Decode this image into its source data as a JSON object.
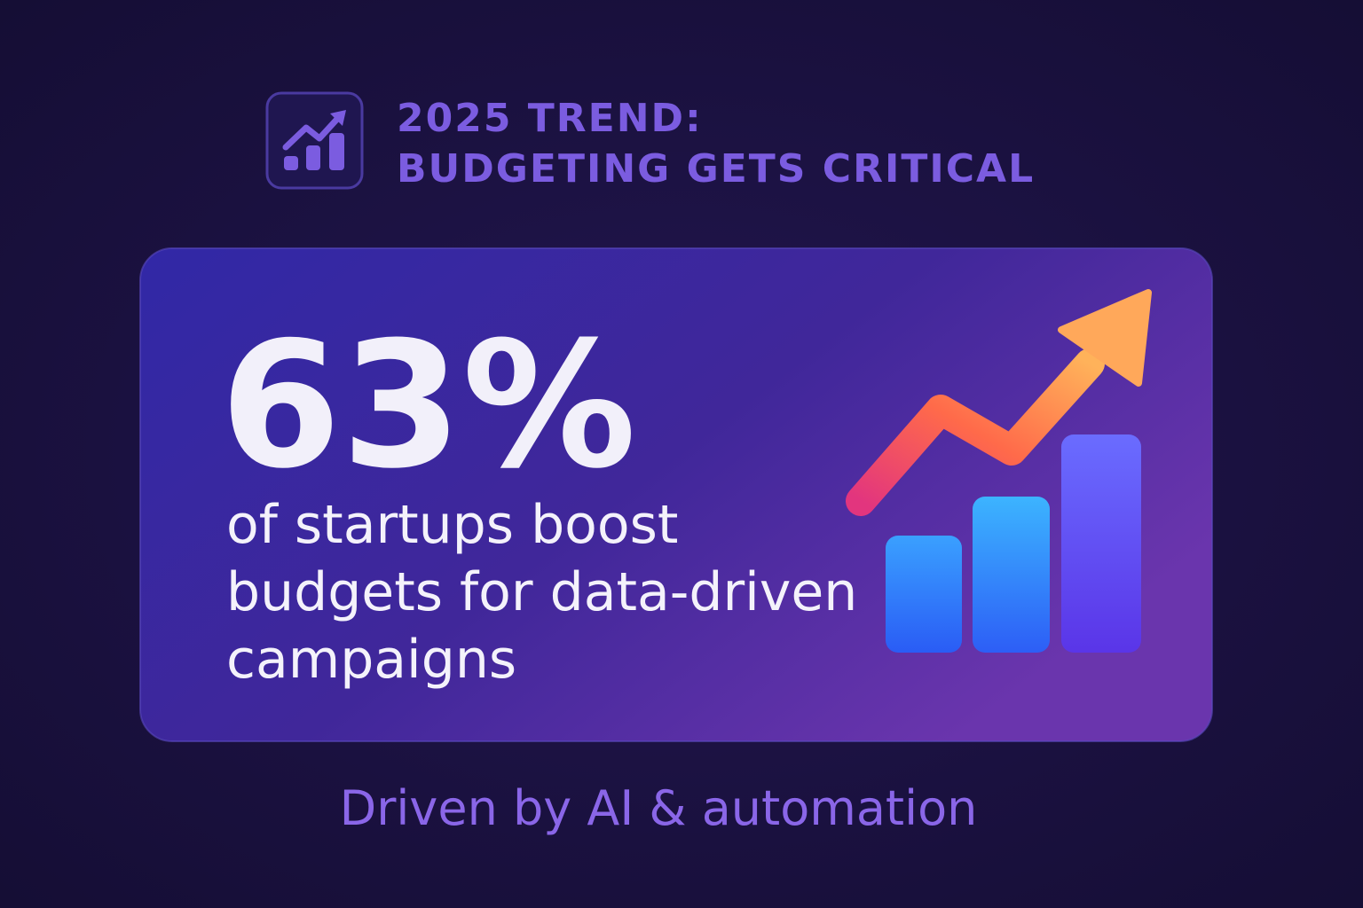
{
  "header": {
    "title_lines": [
      "2025 TREND:",
      "BUDGETING GETS CRITICAL"
    ]
  },
  "stat": {
    "value": "63%",
    "description_lines": [
      "of startups boost",
      "budgets for data-driven",
      "campaigns"
    ]
  },
  "footer": {
    "text": "Driven by AI & automation"
  }
}
